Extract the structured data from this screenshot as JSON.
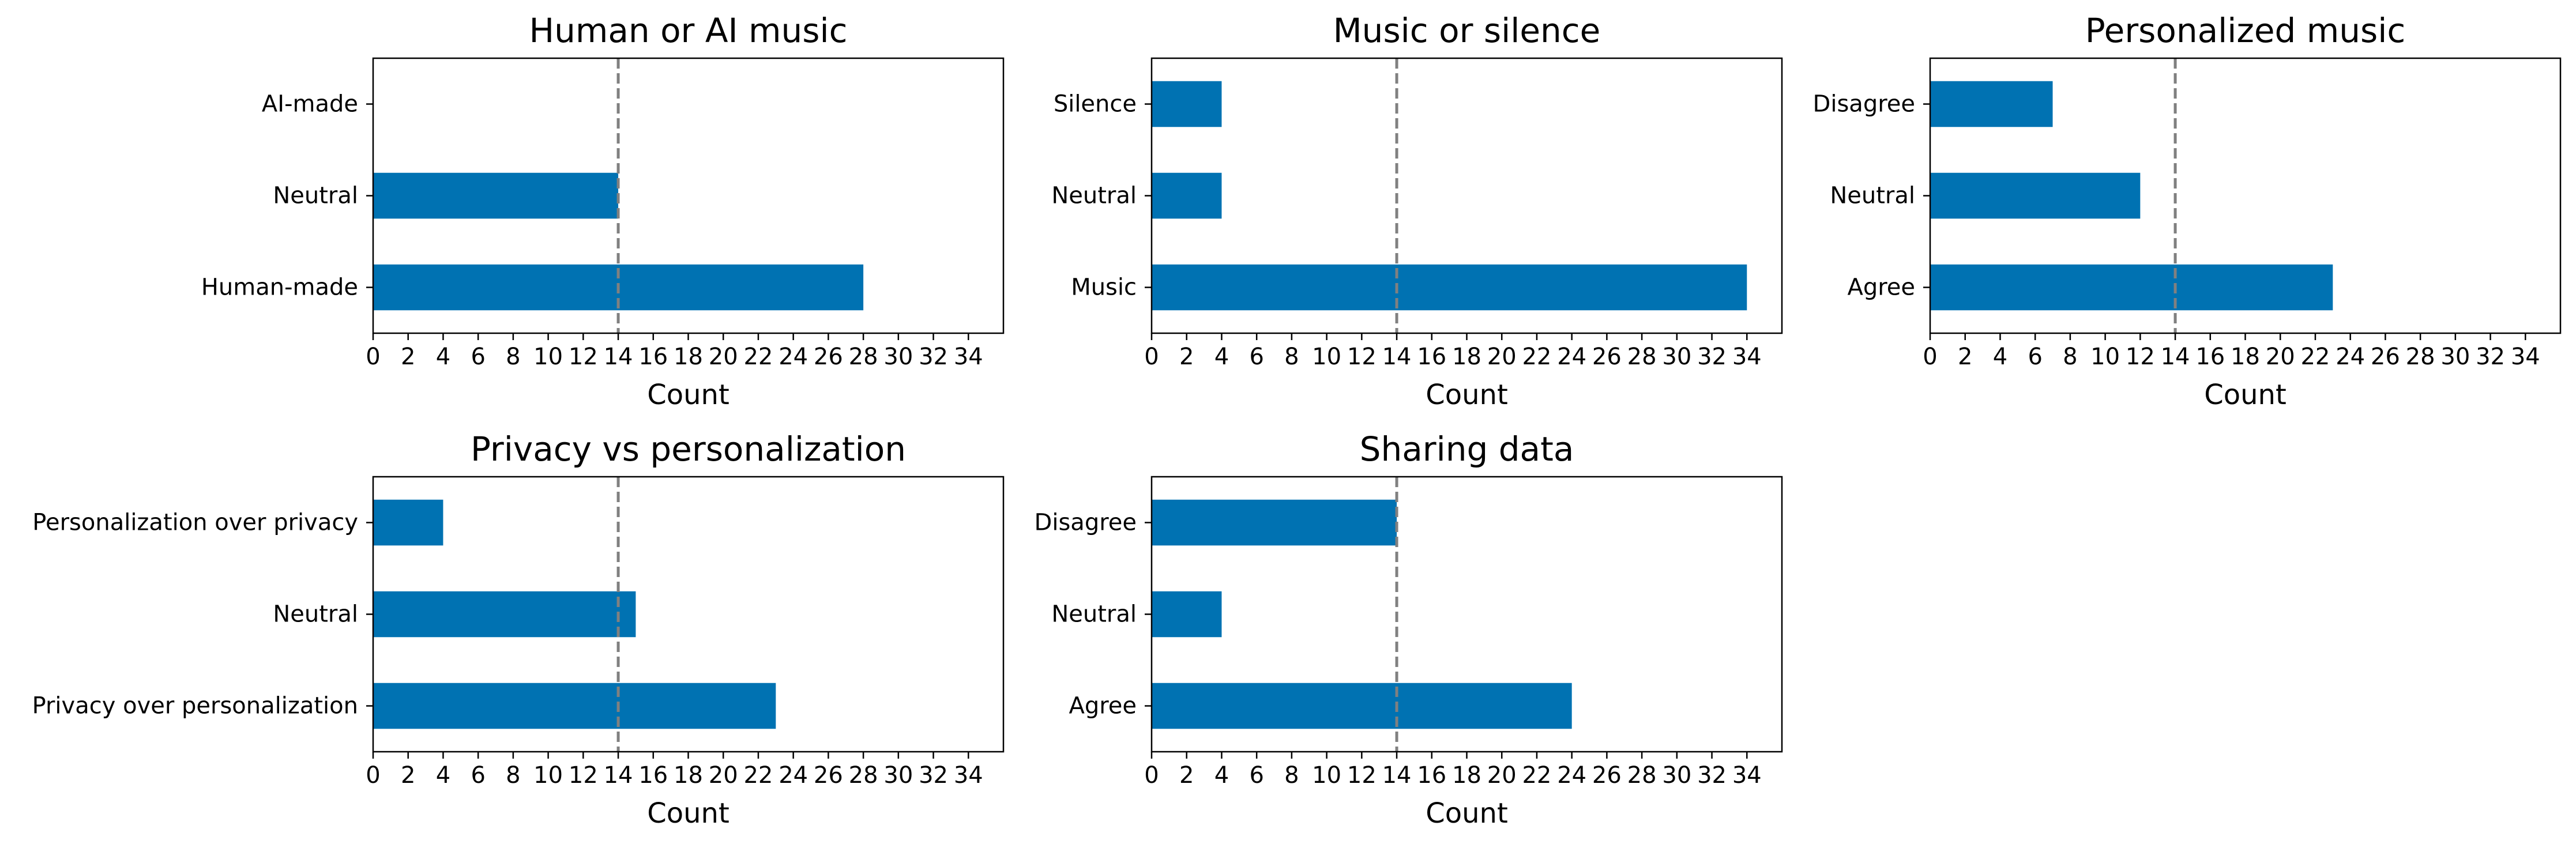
{
  "figure": {
    "bar_color": "#0072b2",
    "reference_line_color": "#808080",
    "background": "#ffffff"
  },
  "chart_data": [
    {
      "type": "bar",
      "orientation": "horizontal",
      "title": "Human or AI music",
      "xlabel": "Count",
      "categories": [
        "Human-made",
        "Neutral",
        "AI-made"
      ],
      "values": [
        28,
        14,
        0
      ],
      "xlim": [
        0,
        36
      ],
      "xticks": [
        0,
        2,
        4,
        6,
        8,
        10,
        12,
        14,
        16,
        18,
        20,
        22,
        24,
        26,
        28,
        30,
        32,
        34
      ],
      "reference_line": 14,
      "grid": false
    },
    {
      "type": "bar",
      "orientation": "horizontal",
      "title": "Music or silence",
      "xlabel": "Count",
      "categories": [
        "Music",
        "Neutral",
        "Silence"
      ],
      "values": [
        34,
        4,
        4
      ],
      "xlim": [
        0,
        36
      ],
      "xticks": [
        0,
        2,
        4,
        6,
        8,
        10,
        12,
        14,
        16,
        18,
        20,
        22,
        24,
        26,
        28,
        30,
        32,
        34
      ],
      "reference_line": 14,
      "grid": false
    },
    {
      "type": "bar",
      "orientation": "horizontal",
      "title": "Personalized music",
      "xlabel": "Count",
      "categories": [
        "Agree",
        "Neutral",
        "Disagree"
      ],
      "values": [
        23,
        12,
        7
      ],
      "xlim": [
        0,
        36
      ],
      "xticks": [
        0,
        2,
        4,
        6,
        8,
        10,
        12,
        14,
        16,
        18,
        20,
        22,
        24,
        26,
        28,
        30,
        32,
        34
      ],
      "reference_line": 14,
      "grid": false
    },
    {
      "type": "bar",
      "orientation": "horizontal",
      "title": "Privacy vs personalization",
      "xlabel": "Count",
      "categories": [
        "Privacy over personalization",
        "Neutral",
        "Personalization over privacy"
      ],
      "values": [
        23,
        15,
        4
      ],
      "xlim": [
        0,
        36
      ],
      "xticks": [
        0,
        2,
        4,
        6,
        8,
        10,
        12,
        14,
        16,
        18,
        20,
        22,
        24,
        26,
        28,
        30,
        32,
        34
      ],
      "reference_line": 14,
      "grid": false
    },
    {
      "type": "bar",
      "orientation": "horizontal",
      "title": "Sharing data",
      "xlabel": "Count",
      "categories": [
        "Agree",
        "Neutral",
        "Disagree"
      ],
      "values": [
        24,
        4,
        14
      ],
      "xlim": [
        0,
        36
      ],
      "xticks": [
        0,
        2,
        4,
        6,
        8,
        10,
        12,
        14,
        16,
        18,
        20,
        22,
        24,
        26,
        28,
        30,
        32,
        34
      ],
      "reference_line": 14,
      "grid": false
    }
  ]
}
